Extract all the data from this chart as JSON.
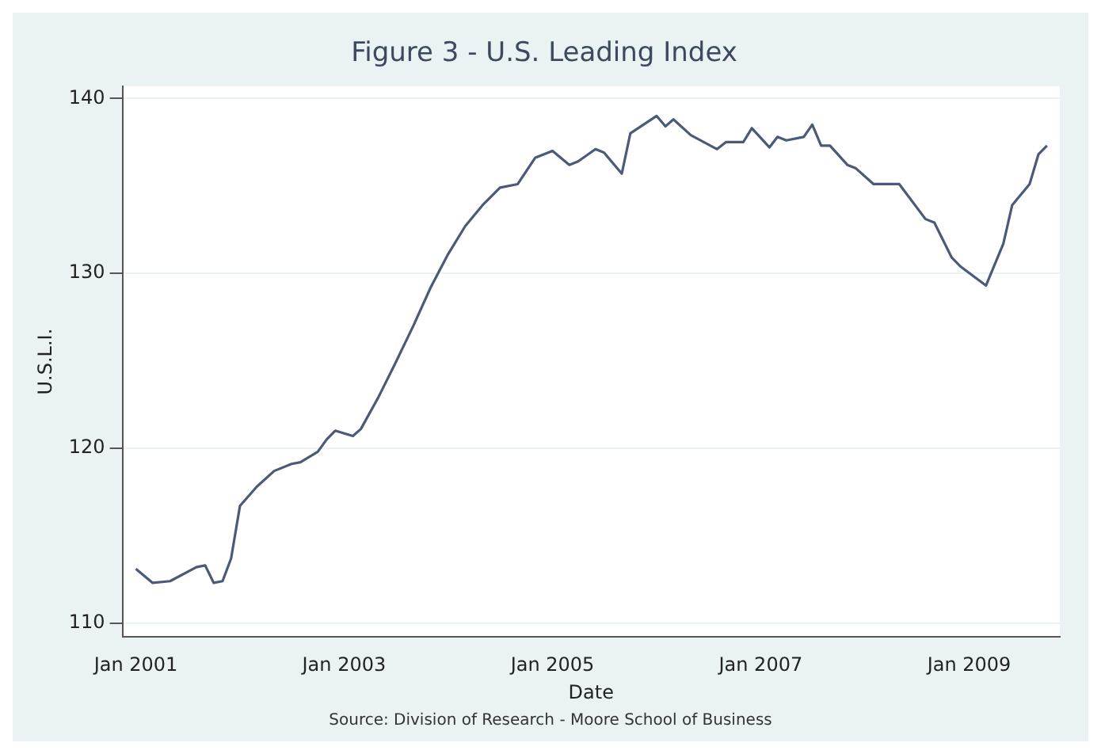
{
  "chart_data": {
    "type": "line",
    "title": "Figure 3 - U.S. Leading Index",
    "xlabel": "Date",
    "ylabel": "U.S.L.I.",
    "annotations": [
      "Source: Division of Research - Moore School of Business"
    ],
    "x": [
      "2001-01",
      "2001-03",
      "2001-05",
      "2001-08",
      "2001-09",
      "2001-10",
      "2001-11",
      "2001-12",
      "2002-01",
      "2002-03",
      "2002-05",
      "2002-07",
      "2002-08",
      "2002-10",
      "2002-11",
      "2002-12",
      "2003-02",
      "2003-03",
      "2003-05",
      "2003-07",
      "2003-09",
      "2003-11",
      "2004-01",
      "2004-03",
      "2004-05",
      "2004-07",
      "2004-09",
      "2004-11",
      "2005-01",
      "2005-03",
      "2005-04",
      "2005-06",
      "2005-07",
      "2005-09",
      "2005-10",
      "2006-01",
      "2006-02",
      "2006-03",
      "2006-05",
      "2006-08",
      "2006-09",
      "2006-11",
      "2006-12",
      "2007-02",
      "2007-03",
      "2007-04",
      "2007-06",
      "2007-07",
      "2007-08",
      "2007-09",
      "2007-11",
      "2007-12",
      "2008-02",
      "2008-05",
      "2008-08",
      "2008-09",
      "2008-11",
      "2008-12",
      "2009-03",
      "2009-05",
      "2009-06",
      "2009-08",
      "2009-09",
      "2009-10"
    ],
    "series": [
      {
        "color": "#4a5a78",
        "values": [
          113.1,
          112.3,
          112.4,
          113.2,
          113.3,
          112.3,
          112.4,
          113.7,
          116.7,
          117.8,
          118.7,
          119.1,
          119.2,
          119.8,
          120.5,
          121.0,
          120.7,
          121.1,
          122.9,
          124.9,
          127.0,
          129.2,
          131.1,
          132.7,
          133.9,
          134.9,
          135.1,
          136.6,
          137.0,
          136.2,
          136.4,
          137.1,
          136.9,
          135.7,
          138.0,
          139.0,
          138.4,
          138.8,
          137.9,
          137.1,
          137.5,
          137.5,
          138.3,
          137.2,
          137.8,
          137.6,
          137.8,
          138.5,
          137.3,
          137.3,
          136.2,
          136.0,
          135.1,
          135.1,
          133.1,
          132.9,
          130.9,
          130.4,
          129.3,
          131.7,
          133.9,
          135.1,
          136.8,
          137.3
        ]
      }
    ],
    "xlim": [
      "2000-11-15",
      "2009-11-15"
    ],
    "xticks": [
      {
        "value": "2001-01",
        "label": "Jan 2001"
      },
      {
        "value": "2003-01",
        "label": "Jan 2003"
      },
      {
        "value": "2005-01",
        "label": "Jan 2005"
      },
      {
        "value": "2007-01",
        "label": "Jan 2007"
      },
      {
        "value": "2009-01",
        "label": "Jan 2009"
      }
    ],
    "ylim": [
      109.2,
      140.7
    ],
    "yticks": [
      110,
      120,
      130,
      140
    ],
    "grid": "y",
    "legend": false,
    "marker": "none",
    "line_style": "solid"
  }
}
